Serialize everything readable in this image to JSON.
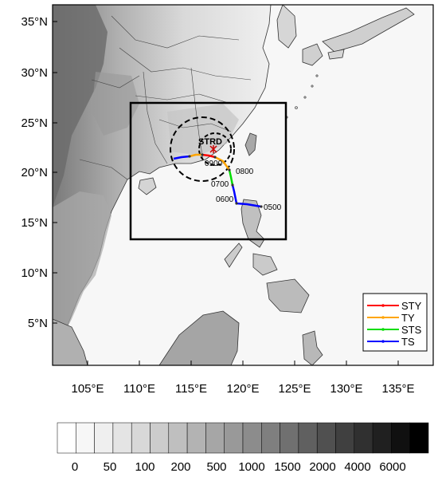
{
  "map": {
    "lat_labels": [
      "35°N",
      "30°N",
      "25°N",
      "20°N",
      "15°N",
      "10°N",
      "5°N"
    ],
    "lon_labels": [
      "105°E",
      "110°E",
      "115°E",
      "120°E",
      "125°E",
      "130°E",
      "135°E"
    ],
    "station_label": "STRD",
    "time_labels": [
      "0500",
      "0600",
      "0700",
      "0800",
      "0900"
    ]
  },
  "legend": {
    "items": [
      {
        "label": "STY",
        "color": "#ff0000"
      },
      {
        "label": "TY",
        "color": "#ffa500"
      },
      {
        "label": "STS",
        "color": "#00dd00"
      },
      {
        "label": "TS",
        "color": "#0000ff"
      }
    ]
  },
  "colorbar": {
    "labels": [
      "0",
      "50",
      "100",
      "200",
      "500",
      "1000",
      "1500",
      "2000",
      "4000",
      "6000"
    ],
    "colors": [
      "#ffffff",
      "#f7f7f7",
      "#efefef",
      "#e4e4e4",
      "#d8d8d8",
      "#cccccc",
      "#bfbfbf",
      "#b3b3b3",
      "#a6a6a6",
      "#999999",
      "#8c8c8c",
      "#7f7f7f",
      "#707070",
      "#606060",
      "#505050",
      "#404040",
      "#303030",
      "#202020",
      "#101010",
      "#000000"
    ]
  }
}
